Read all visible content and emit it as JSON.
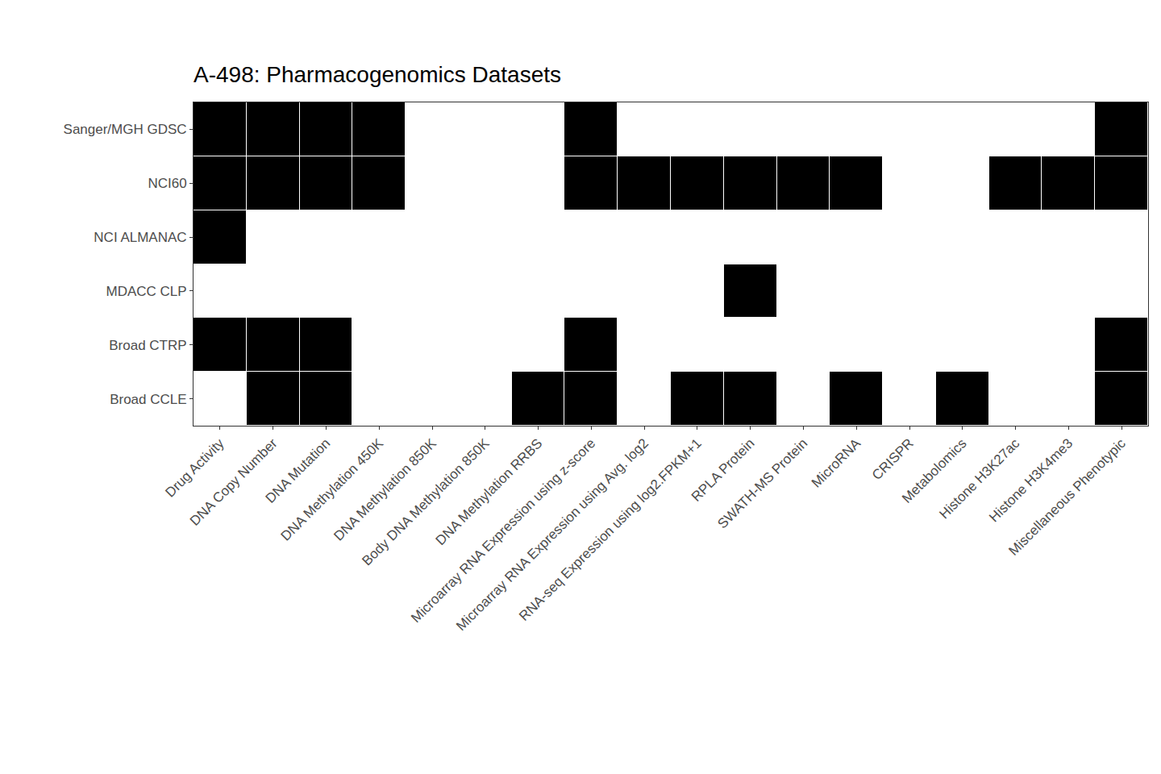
{
  "chart_data": {
    "type": "heatmap",
    "title": "A-498: Pharmacogenomics Datasets",
    "x": [
      "Drug Activity",
      "DNA Copy Number",
      "DNA Mutation",
      "DNA Methylation 450K",
      "DNA Methylation 850K",
      "Body DNA Methylation 850K",
      "DNA Methylation RRBS",
      "Microarray RNA Expression using z-score",
      "Microarray RNA Expression using Avg. log2",
      "RNA-seq Expression using log2.FPKM+1",
      "RPLA Protein",
      "SWATH-MS Protein",
      "MicroRNA",
      "CRISPR",
      "Metabolomics",
      "Histone H3K27ac",
      "Histone H3K4me3",
      "Miscellaneous Phenotypic"
    ],
    "y": [
      "Sanger/MGH GDSC",
      "NCI60",
      "NCI ALMANAC",
      "MDACC CLP",
      "Broad CTRP",
      "Broad CCLE"
    ],
    "cells": [
      [
        1,
        1,
        1,
        1,
        0,
        0,
        0,
        1,
        0,
        0,
        0,
        0,
        0,
        0,
        0,
        0,
        0,
        1
      ],
      [
        1,
        1,
        1,
        1,
        0,
        0,
        0,
        1,
        1,
        1,
        1,
        1,
        1,
        0,
        0,
        1,
        1,
        1
      ],
      [
        1,
        0,
        0,
        0,
        0,
        0,
        0,
        0,
        0,
        0,
        0,
        0,
        0,
        0,
        0,
        0,
        0,
        0
      ],
      [
        0,
        0,
        0,
        0,
        0,
        0,
        0,
        0,
        0,
        0,
        1,
        0,
        0,
        0,
        0,
        0,
        0,
        0
      ],
      [
        1,
        1,
        1,
        0,
        0,
        0,
        0,
        1,
        0,
        0,
        0,
        0,
        0,
        0,
        0,
        0,
        0,
        1
      ],
      [
        0,
        1,
        1,
        0,
        0,
        0,
        1,
        1,
        0,
        1,
        1,
        0,
        1,
        0,
        1,
        0,
        0,
        1
      ]
    ],
    "colors": [
      "#ffffff",
      "#000000"
    ]
  }
}
